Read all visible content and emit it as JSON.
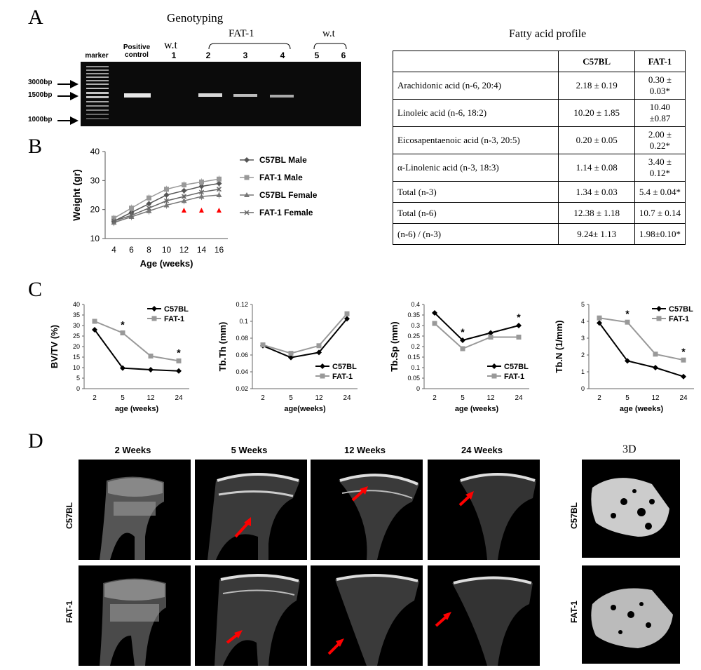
{
  "panels": {
    "A": "A",
    "B": "B",
    "C": "C",
    "D": "D"
  },
  "genotyping": {
    "title": "Genotyping",
    "marker_label": "marker",
    "positive_control": [
      "Positive",
      "control"
    ],
    "wt1": "w.t",
    "fat1_group": "FAT-1",
    "wt2": "w.t",
    "lanes": [
      "1",
      "2",
      "3",
      "4",
      "5",
      "6"
    ],
    "bp_labels": [
      "3000bp",
      "1500bp",
      "1000bp"
    ]
  },
  "fatty_acid": {
    "title": "Fatty acid profile",
    "columns": [
      "",
      "C57BL",
      "FAT-1"
    ],
    "rows": [
      [
        "Arachidonic acid (n-6, 20:4)",
        "2.18 ± 0.19",
        "0.30 ± 0.03*"
      ],
      [
        "Linoleic acid (n-6, 18:2)",
        "10.20 ± 1.85",
        "10.40 ±0.87"
      ],
      [
        "Eicosapentaenoic acid (n-3, 20:5)",
        "0.20 ± 0.05",
        "2.00 ± 0.22*"
      ],
      [
        "α-Linolenic acid (n-3, 18:3)",
        "1.14 ± 0.08",
        "3.40  ± 0.12*"
      ],
      [
        "Total (n-3)",
        "1.34 ± 0.03",
        "5.4 ± 0.04*"
      ],
      [
        "Total (n-6)",
        "12.38 ± 1.18",
        "10.7 ± 0.14"
      ],
      [
        "(n-6) / (n-3)",
        "9.24± 1.13",
        "1.98±0.10*"
      ]
    ]
  },
  "chart_data": [
    {
      "type": "line",
      "panel": "B",
      "xlabel": "Age (weeks)",
      "ylabel": "Weight (gr)",
      "x": [
        4,
        6,
        8,
        10,
        12,
        14,
        16
      ],
      "ylim": [
        10,
        40
      ],
      "yticks": [
        10,
        20,
        30,
        40
      ],
      "series": [
        {
          "name": "C57BL Male",
          "values": [
            16,
            19,
            22,
            25,
            26.5,
            28,
            29
          ],
          "color": "#555555",
          "marker": "diamond"
        },
        {
          "name": "FAT-1 Male",
          "values": [
            17,
            20.5,
            24,
            27,
            28.5,
            29.5,
            30.5
          ],
          "color": "#999999",
          "marker": "square"
        },
        {
          "name": "C57BL Female",
          "values": [
            15.5,
            17.5,
            19.5,
            21.5,
            23,
            24.5,
            25
          ],
          "color": "#777777",
          "marker": "triangle"
        },
        {
          "name": "FAT-1 Female",
          "values": [
            16,
            18,
            20.5,
            23,
            24.5,
            26,
            27
          ],
          "color": "#666666",
          "marker": "x"
        }
      ],
      "annotations": [
        {
          "x": 12,
          "text": "▲"
        },
        {
          "x": 14,
          "text": "▲"
        },
        {
          "x": 16,
          "text": "▲"
        }
      ]
    },
    {
      "type": "line",
      "panel": "C1",
      "xlabel": "age (weeks)",
      "ylabel": "BV/TV (%)",
      "categories": [
        "2",
        "5",
        "12",
        "24"
      ],
      "ylim": [
        0,
        40
      ],
      "yticks": [
        0,
        5,
        10,
        15,
        20,
        25,
        30,
        35,
        40
      ],
      "series": [
        {
          "name": "C57BL",
          "values": [
            28,
            9.8,
            9,
            8.4
          ]
        },
        {
          "name": "FAT-1",
          "values": [
            32,
            26.5,
            15.5,
            13.2
          ]
        }
      ],
      "stars": [
        1,
        3
      ],
      "legend": "top-right"
    },
    {
      "type": "line",
      "panel": "C2",
      "xlabel": "age(weeks)",
      "ylabel": "Tb.Th (mm)",
      "categories": [
        "2",
        "5",
        "12",
        "24"
      ],
      "ylim": [
        0.02,
        0.12
      ],
      "yticks": [
        0.02,
        0.04,
        0.06,
        0.08,
        0.1,
        0.12
      ],
      "series": [
        {
          "name": "C57BL",
          "values": [
            0.071,
            0.057,
            0.063,
            0.103
          ]
        },
        {
          "name": "FAT-1",
          "values": [
            0.072,
            0.062,
            0.071,
            0.109
          ]
        }
      ],
      "stars": [],
      "legend": "bottom-right"
    },
    {
      "type": "line",
      "panel": "C3",
      "xlabel": "age (weeks)",
      "ylabel": "Tb.Sp (mm)",
      "categories": [
        "2",
        "5",
        "12",
        "24"
      ],
      "ylim": [
        0,
        0.4
      ],
      "yticks": [
        0,
        0.05,
        0.1,
        0.15,
        0.2,
        0.25,
        0.3,
        0.35,
        0.4
      ],
      "series": [
        {
          "name": "C57BL",
          "values": [
            0.36,
            0.23,
            0.265,
            0.3
          ]
        },
        {
          "name": "FAT-1",
          "values": [
            0.31,
            0.19,
            0.245,
            0.245
          ]
        }
      ],
      "stars": [
        1,
        3
      ],
      "legend": "bottom-right"
    },
    {
      "type": "line",
      "panel": "C4",
      "xlabel": "age (weeks)",
      "ylabel": "Tb.N (1/mm)",
      "categories": [
        "2",
        "5",
        "12",
        "24"
      ],
      "ylim": [
        0,
        5
      ],
      "yticks": [
        0,
        1,
        2,
        3,
        4,
        5
      ],
      "series": [
        {
          "name": "C57BL",
          "values": [
            3.9,
            1.65,
            1.25,
            0.72
          ]
        },
        {
          "name": "FAT-1",
          "values": [
            4.2,
            3.95,
            2.05,
            1.7
          ]
        }
      ],
      "stars": [
        1,
        3
      ],
      "legend": "top-right"
    }
  ],
  "ct": {
    "columns": [
      "2 Weeks",
      "5 Weeks",
      "12 Weeks",
      "24 Weeks"
    ],
    "threed_title": "3D",
    "rows": [
      "C57BL",
      "FAT-1"
    ]
  },
  "colors": {
    "c57": "#000000",
    "fat1": "#999999",
    "arrow": "#ff0000"
  }
}
